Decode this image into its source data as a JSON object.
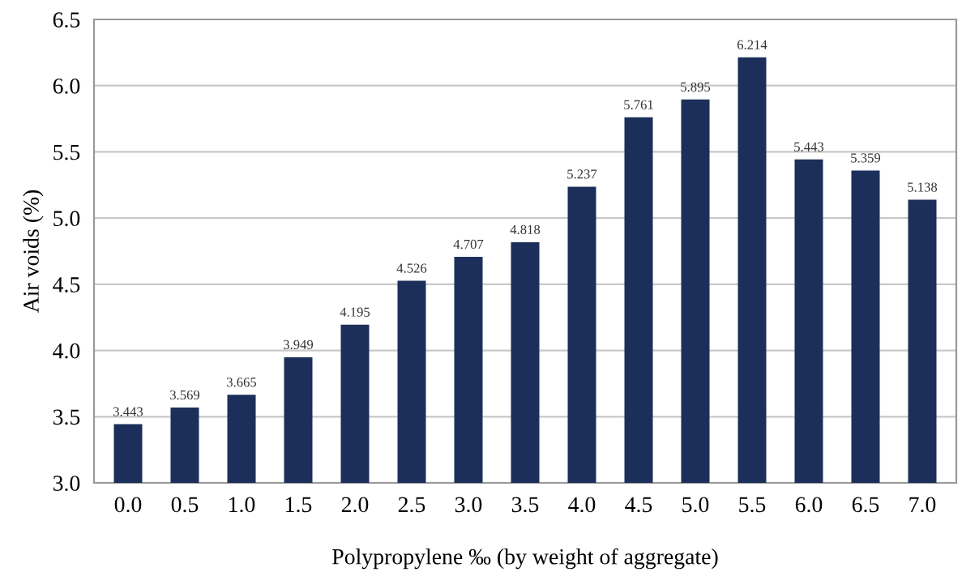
{
  "chart_data": {
    "type": "bar",
    "xlabel": "Polypropylene ‰ (by weight of aggregate)",
    "ylabel": "Air voids (%)",
    "categories": [
      "0.0",
      "0.5",
      "1.0",
      "1.5",
      "2.0",
      "2.5",
      "3.0",
      "3.5",
      "4.0",
      "4.5",
      "5.0",
      "5.5",
      "6.0",
      "6.5",
      "7.0"
    ],
    "values": [
      3.443,
      3.569,
      3.665,
      3.949,
      4.195,
      4.526,
      4.707,
      4.818,
      5.237,
      5.761,
      5.895,
      6.214,
      5.443,
      5.359,
      5.138
    ],
    "color": "#1b2f5a",
    "data_labels": true,
    "ylim": [
      3.0,
      6.5
    ],
    "yticks": [
      {
        "value": 3.0,
        "label": "3.0"
      },
      {
        "value": 3.5,
        "label": "3.5"
      },
      {
        "value": 4.0,
        "label": "4.0"
      },
      {
        "value": 4.5,
        "label": "4.5"
      },
      {
        "value": 5.0,
        "label": "5.0"
      },
      {
        "value": 5.5,
        "label": "5.5"
      },
      {
        "value": 6.0,
        "label": "6.0"
      },
      {
        "value": 6.5,
        "label": "6.5"
      }
    ],
    "grid": "y",
    "legend": false
  }
}
